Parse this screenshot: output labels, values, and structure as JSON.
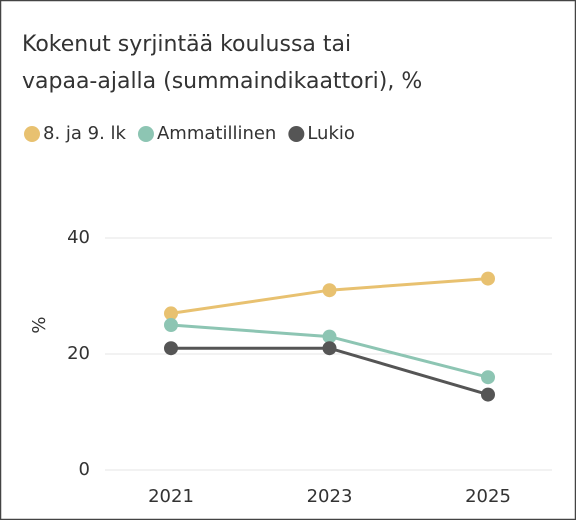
{
  "chart_data": {
    "type": "line",
    "title": [
      "Kokenut syrjintää koulussa tai",
      "vapaa-ajalla (summaindikaattori), %"
    ],
    "y_label": "%",
    "categories": [
      "2021",
      "2023",
      "2025"
    ],
    "series": [
      {
        "name": "8. ja 9. lk",
        "color": "#e8c170",
        "values": [
          27,
          31,
          33
        ]
      },
      {
        "name": "Ammatillinen",
        "color": "#8dc5b3",
        "values": [
          25,
          23,
          16
        ]
      },
      {
        "name": "Lukio",
        "color": "#555555",
        "values": [
          21,
          21,
          13
        ]
      }
    ],
    "ylim": [
      0,
      40
    ],
    "yticks": [
      0,
      20,
      40
    ],
    "grid": true
  }
}
